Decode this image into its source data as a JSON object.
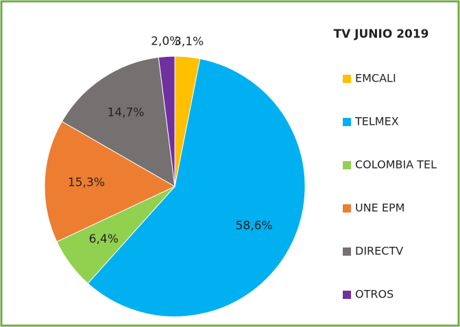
{
  "chart_data": {
    "type": "pie",
    "title": "TV JUNIO 2019",
    "categories": [
      "EMCALI",
      "TELMEX",
      "COLOMBIA TEL",
      "UNE EPM",
      "DIRECTV",
      "OTROS"
    ],
    "values": [
      3.1,
      58.6,
      6.4,
      15.3,
      14.7,
      2.0
    ],
    "value_labels": [
      "3,1%",
      "58,6%",
      "6,4%",
      "15,3%",
      "14,7%",
      "2,0%"
    ],
    "colors": [
      "#ffc000",
      "#00b0f0",
      "#92d050",
      "#ed7d31",
      "#767171",
      "#7030a0"
    ],
    "legend": "right"
  }
}
